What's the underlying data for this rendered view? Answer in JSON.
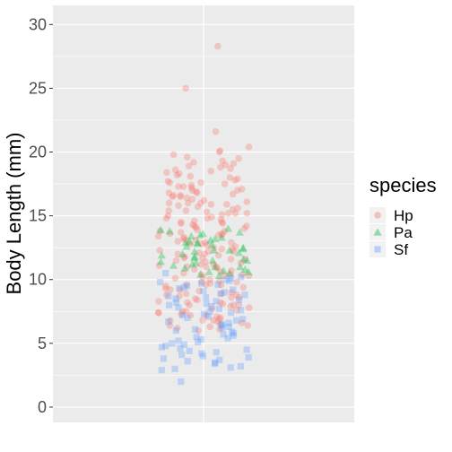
{
  "chart_data": {
    "type": "scatter",
    "title": "",
    "xlabel": "",
    "ylabel": "Body Length (mm)",
    "ylim": [
      -1.2,
      31.5
    ],
    "yticks": [
      0,
      5,
      10,
      15,
      20,
      25,
      30
    ],
    "grid": true,
    "x_categorical_single_group": true,
    "legend": {
      "title": "species",
      "placement": "right",
      "entries": [
        {
          "label": "Hp",
          "shape": "circle",
          "color": "#F8766D"
        },
        {
          "label": "Pa",
          "shape": "triangle",
          "color": "#00BA38"
        },
        {
          "label": "Sf",
          "shape": "square",
          "color": "#619CFF"
        }
      ]
    },
    "series": [
      {
        "name": "Hp",
        "shape": "circle",
        "color": "#F8766D",
        "values": [
          28.3,
          25.0,
          21.6,
          20.4,
          20.1,
          20.0,
          19.8,
          19.5,
          19.3,
          19.1,
          19.0,
          18.9,
          18.7,
          18.6,
          18.5,
          18.3,
          18.2,
          18.0,
          17.9,
          17.8,
          17.7,
          17.6,
          17.5,
          17.4,
          17.3,
          17.2,
          17.1,
          17.0,
          16.9,
          16.8,
          16.7,
          16.6,
          16.5,
          16.4,
          16.3,
          16.2,
          16.1,
          16.0,
          15.9,
          15.8,
          15.7,
          15.6,
          15.5,
          15.4,
          15.3,
          15.2,
          15.1,
          15.0,
          14.9,
          14.8,
          14.7,
          14.6,
          14.5,
          14.4,
          14.3,
          14.2,
          14.1,
          14.0,
          13.9,
          13.8,
          13.7,
          13.6,
          13.5,
          13.4,
          13.3,
          13.2,
          13.1,
          13.0,
          12.9,
          12.8,
          12.7,
          12.6,
          12.5,
          12.4,
          12.3,
          12.2,
          12.1,
          12.0,
          11.9,
          11.8,
          11.7,
          11.6,
          11.5,
          11.4,
          11.3,
          11.2,
          11.1,
          11.0,
          10.9,
          10.8,
          10.7,
          10.6,
          10.5,
          10.4,
          10.3,
          10.2,
          10.1,
          10.0,
          9.9,
          9.8,
          9.7,
          9.6,
          9.5,
          9.4,
          9.3,
          9.2,
          9.1,
          9.0,
          8.9,
          8.8,
          8.7,
          8.6,
          8.5,
          8.4,
          8.3,
          8.2,
          8.1,
          8.0,
          7.9,
          7.8,
          7.7,
          7.6,
          7.5,
          7.4,
          7.3,
          7.2,
          7.1,
          7.0,
          6.9,
          6.8,
          6.7,
          6.6,
          6.5,
          6.4,
          6.3,
          6.2,
          6.1,
          6.0,
          19.6,
          18.8,
          18.1,
          17.0,
          16.5,
          16.0,
          15.4,
          14.8,
          14.2,
          13.5,
          12.9,
          12.2,
          11.6,
          11.0,
          10.4,
          9.8,
          9.2,
          8.6,
          8.0,
          7.4,
          6.8,
          19.2,
          18.4,
          17.6,
          16.8,
          16.0,
          15.2,
          14.4,
          13.6,
          12.8,
          12.0,
          11.2,
          10.4,
          9.6,
          8.8,
          8.0,
          7.2,
          6.4,
          17.3,
          16.6,
          15.9,
          15.2,
          14.5,
          13.8,
          13.1,
          12.4,
          11.7,
          11.0,
          10.3,
          9.6,
          8.9,
          8.2,
          7.5,
          6.8
        ]
      },
      {
        "name": "Pa",
        "shape": "triangle",
        "color": "#00BA38",
        "values": [
          14.0,
          13.9,
          13.8,
          13.6,
          13.5,
          13.4,
          13.3,
          13.2,
          13.1,
          13.0,
          12.9,
          12.8,
          12.7,
          12.6,
          12.5,
          12.4,
          12.3,
          12.2,
          12.1,
          12.0,
          11.9,
          11.8,
          11.7,
          11.6,
          11.5,
          11.4,
          11.3,
          11.2,
          11.1,
          11.0,
          10.9,
          10.8,
          10.7,
          10.6,
          10.5,
          10.4,
          10.3,
          13.7,
          12.9,
          12.3,
          11.5,
          11.0,
          10.6
        ]
      },
      {
        "name": "Sf",
        "shape": "square",
        "color": "#619CFF",
        "values": [
          10.5,
          10.2,
          10.0,
          9.8,
          9.6,
          9.4,
          9.2,
          9.0,
          8.8,
          8.6,
          8.4,
          8.2,
          8.0,
          7.8,
          7.6,
          7.4,
          7.2,
          7.0,
          6.8,
          6.6,
          6.4,
          6.2,
          6.0,
          5.8,
          5.6,
          5.4,
          5.2,
          5.0,
          4.8,
          4.6,
          4.4,
          4.2,
          4.0,
          3.8,
          3.6,
          3.4,
          3.2,
          3.0,
          2.9,
          2.0,
          9.9,
          9.1,
          8.3,
          7.5,
          6.7,
          5.9,
          5.1,
          4.3,
          3.5,
          9.5,
          8.7,
          7.9,
          7.1,
          6.3,
          5.5,
          4.7,
          3.9,
          3.1,
          10.1,
          9.3,
          8.5,
          7.7,
          6.9,
          6.1,
          5.3,
          4.5,
          3.7,
          9.7,
          8.9,
          8.1,
          7.3,
          6.5,
          5.7,
          4.9,
          4.1
        ]
      }
    ]
  }
}
